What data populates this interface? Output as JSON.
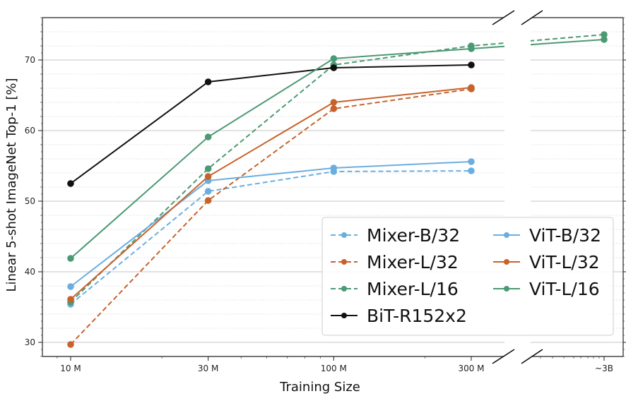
{
  "chart_data": {
    "type": "line",
    "title": "",
    "xlabel": "Training Size",
    "ylabel": "Linear 5-shot ImageNet Top-1 [%]",
    "ylim": [
      28,
      76
    ],
    "x_scale": "log",
    "x_categories": [
      "10 M",
      "30 M",
      "100 M",
      "300 M",
      "~3B"
    ],
    "x_values": [
      9,
      30,
      90,
      300,
      3000
    ],
    "yticks": [
      30,
      40,
      50,
      60,
      70
    ],
    "grid": true,
    "axis_break_after": "300 M",
    "legend_position": "lower-right",
    "series": [
      {
        "name": "Mixer-B/32",
        "color": "#6aaee0",
        "style": "dashed",
        "x": [
          9,
          30,
          90,
          300
        ],
        "values": [
          35.4,
          51.4,
          54.2,
          54.3
        ]
      },
      {
        "name": "Mixer-L/32",
        "color": "#c8622b",
        "style": "dashed",
        "x": [
          9,
          30,
          90,
          300
        ],
        "values": [
          29.7,
          50.1,
          63.1,
          65.9
        ]
      },
      {
        "name": "Mixer-L/16",
        "color": "#4b9a73",
        "style": "dashed",
        "x": [
          9,
          30,
          90,
          300,
          3000
        ],
        "values": [
          35.7,
          54.6,
          69.3,
          72.0,
          73.6
        ]
      },
      {
        "name": "BiT-R152x2",
        "color": "#111111",
        "style": "solid",
        "x": [
          9,
          30,
          90,
          300
        ],
        "values": [
          52.5,
          66.9,
          68.9,
          69.3
        ]
      },
      {
        "name": "ViT-B/32",
        "color": "#6aaee0",
        "style": "solid",
        "x": [
          9,
          30,
          90,
          300
        ],
        "values": [
          37.9,
          52.9,
          54.7,
          55.6
        ]
      },
      {
        "name": "ViT-L/32",
        "color": "#c8622b",
        "style": "solid",
        "x": [
          9,
          30,
          90,
          300
        ],
        "values": [
          36.1,
          53.5,
          64.0,
          66.1
        ]
      },
      {
        "name": "ViT-L/16",
        "color": "#4b9a73",
        "style": "solid",
        "x": [
          9,
          30,
          90,
          300,
          3000
        ],
        "values": [
          41.9,
          59.1,
          70.2,
          71.6,
          72.9
        ]
      }
    ],
    "legend_order": [
      "Mixer-B/32",
      "Mixer-L/32",
      "Mixer-L/16",
      "BiT-R152x2",
      "ViT-B/32",
      "ViT-L/32",
      "ViT-L/16"
    ]
  }
}
